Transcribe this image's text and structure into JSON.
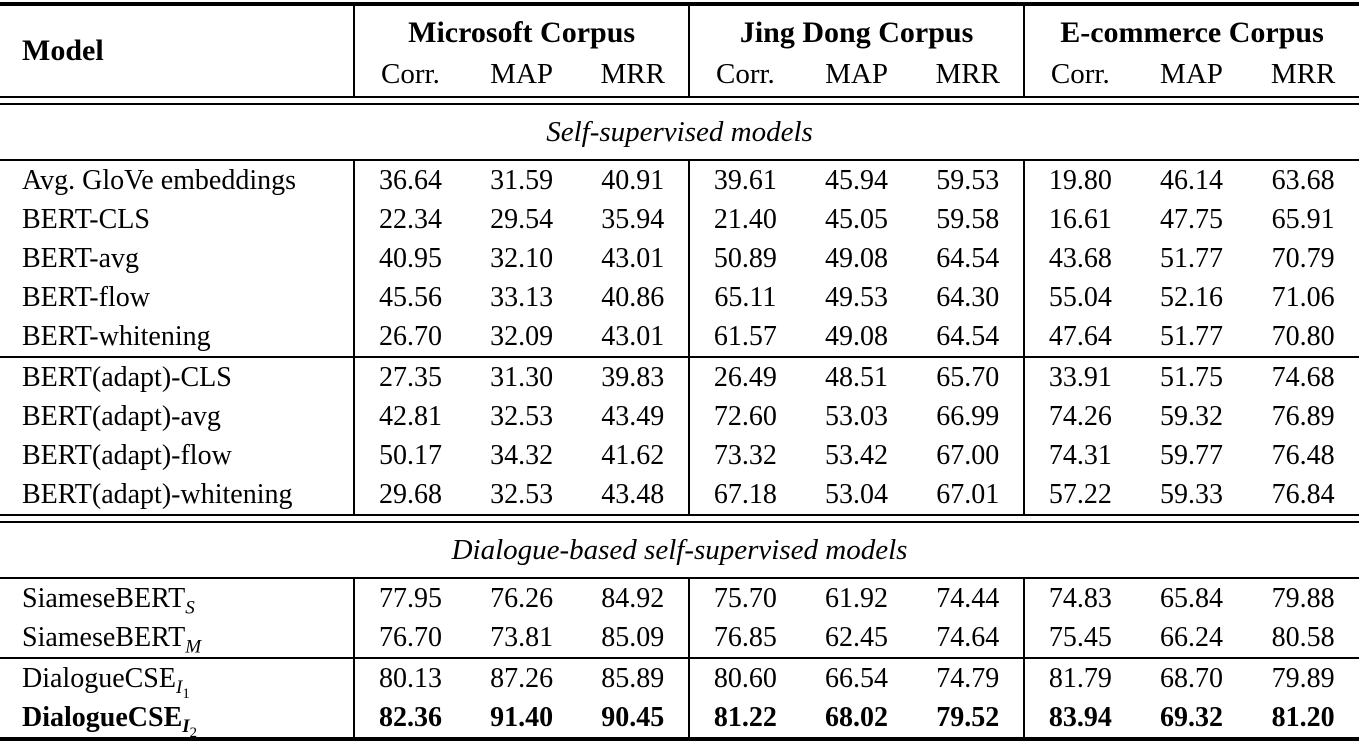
{
  "table": {
    "model_header": "Model",
    "groups": [
      {
        "name": "Microsoft Corpus",
        "metrics": [
          "Corr.",
          "MAP",
          "MRR"
        ]
      },
      {
        "name": "Jing Dong Corpus",
        "metrics": [
          "Corr.",
          "MAP",
          "MRR"
        ]
      },
      {
        "name": "E-commerce Corpus",
        "metrics": [
          "Corr.",
          "MAP",
          "MRR"
        ]
      }
    ],
    "sections": [
      {
        "title": "Self-supervised models",
        "blocks": [
          {
            "rows": [
              {
                "label": "Avg. GloVe embeddings",
                "sub": "",
                "subsub": "",
                "bold": false,
                "values": [
                  "36.64",
                  "31.59",
                  "40.91",
                  "39.61",
                  "45.94",
                  "59.53",
                  "19.80",
                  "46.14",
                  "63.68"
                ]
              },
              {
                "label": "BERT-CLS",
                "sub": "",
                "subsub": "",
                "bold": false,
                "values": [
                  "22.34",
                  "29.54",
                  "35.94",
                  "21.40",
                  "45.05",
                  "59.58",
                  "16.61",
                  "47.75",
                  "65.91"
                ]
              },
              {
                "label": "BERT-avg",
                "sub": "",
                "subsub": "",
                "bold": false,
                "values": [
                  "40.95",
                  "32.10",
                  "43.01",
                  "50.89",
                  "49.08",
                  "64.54",
                  "43.68",
                  "51.77",
                  "70.79"
                ]
              },
              {
                "label": "BERT-flow",
                "sub": "",
                "subsub": "",
                "bold": false,
                "values": [
                  "45.56",
                  "33.13",
                  "40.86",
                  "65.11",
                  "49.53",
                  "64.30",
                  "55.04",
                  "52.16",
                  "71.06"
                ]
              },
              {
                "label": "BERT-whitening",
                "sub": "",
                "subsub": "",
                "bold": false,
                "values": [
                  "26.70",
                  "32.09",
                  "43.01",
                  "61.57",
                  "49.08",
                  "64.54",
                  "47.64",
                  "51.77",
                  "70.80"
                ]
              }
            ]
          },
          {
            "rows": [
              {
                "label": "BERT(adapt)-CLS",
                "sub": "",
                "subsub": "",
                "bold": false,
                "values": [
                  "27.35",
                  "31.30",
                  "39.83",
                  "26.49",
                  "48.51",
                  "65.70",
                  "33.91",
                  "51.75",
                  "74.68"
                ]
              },
              {
                "label": "BERT(adapt)-avg",
                "sub": "",
                "subsub": "",
                "bold": false,
                "values": [
                  "42.81",
                  "32.53",
                  "43.49",
                  "72.60",
                  "53.03",
                  "66.99",
                  "74.26",
                  "59.32",
                  "76.89"
                ]
              },
              {
                "label": "BERT(adapt)-flow",
                "sub": "",
                "subsub": "",
                "bold": false,
                "values": [
                  "50.17",
                  "34.32",
                  "41.62",
                  "73.32",
                  "53.42",
                  "67.00",
                  "74.31",
                  "59.77",
                  "76.48"
                ]
              },
              {
                "label": "BERT(adapt)-whitening",
                "sub": "",
                "subsub": "",
                "bold": false,
                "values": [
                  "29.68",
                  "32.53",
                  "43.48",
                  "67.18",
                  "53.04",
                  "67.01",
                  "57.22",
                  "59.33",
                  "76.84"
                ]
              }
            ]
          }
        ]
      },
      {
        "title": "Dialogue-based self-supervised models",
        "blocks": [
          {
            "rows": [
              {
                "label": "SiameseBERT",
                "sub": "S",
                "subsub": "",
                "bold": false,
                "values": [
                  "77.95",
                  "76.26",
                  "84.92",
                  "75.70",
                  "61.92",
                  "74.44",
                  "74.83",
                  "65.84",
                  "79.88"
                ]
              },
              {
                "label": "SiameseBERT",
                "sub": "M",
                "subsub": "",
                "bold": false,
                "values": [
                  "76.70",
                  "73.81",
                  "85.09",
                  "76.85",
                  "62.45",
                  "74.64",
                  "75.45",
                  "66.24",
                  "80.58"
                ]
              }
            ]
          },
          {
            "rows": [
              {
                "label": "DialogueCSE",
                "sub": "I",
                "subsub": "1",
                "bold": false,
                "values": [
                  "80.13",
                  "87.26",
                  "85.89",
                  "80.60",
                  "66.54",
                  "74.79",
                  "81.79",
                  "68.70",
                  "79.89"
                ]
              },
              {
                "label": "DialogueCSE",
                "sub": "I",
                "subsub": "2",
                "bold": true,
                "values": [
                  "82.36",
                  "91.40",
                  "90.45",
                  "81.22",
                  "68.02",
                  "79.52",
                  "83.94",
                  "69.32",
                  "81.20"
                ]
              }
            ]
          }
        ]
      }
    ]
  }
}
